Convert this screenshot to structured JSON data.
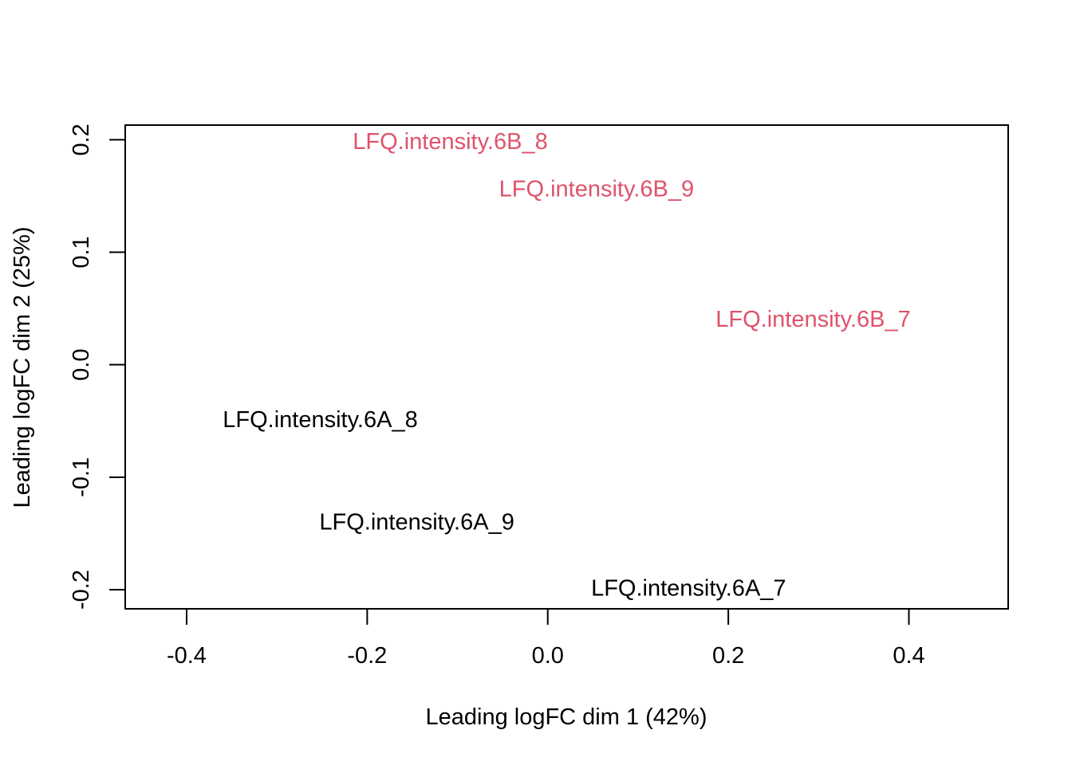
{
  "chart_data": {
    "type": "scatter",
    "title": "",
    "xlabel": "Leading logFC dim 1 (42%)",
    "ylabel": "Leading logFC dim 2 (25%)",
    "xlim": [
      -0.468,
      0.51
    ],
    "ylim": [
      -0.217,
      0.213
    ],
    "xticks": [
      -0.4,
      -0.2,
      0.0,
      0.2,
      0.4
    ],
    "xtick_labels": [
      "-0.4",
      "-0.2",
      "0.0",
      "0.2",
      "0.4"
    ],
    "yticks": [
      -0.2,
      -0.1,
      0.0,
      0.1,
      0.2
    ],
    "ytick_labels": [
      "-0.2",
      "-0.1",
      "0.0",
      "0.1",
      "0.2"
    ],
    "grid": false,
    "points": [
      {
        "label": "LFQ.intensity.6A_7",
        "x": 0.156,
        "y": -0.199,
        "color": "#000000"
      },
      {
        "label": "LFQ.intensity.6A_8",
        "x": -0.252,
        "y": -0.049,
        "color": "#000000"
      },
      {
        "label": "LFQ.intensity.6A_9",
        "x": -0.145,
        "y": -0.14,
        "color": "#000000"
      },
      {
        "label": "LFQ.intensity.6B_7",
        "x": 0.294,
        "y": 0.04,
        "color": "#DF536B"
      },
      {
        "label": "LFQ.intensity.6B_8",
        "x": -0.108,
        "y": 0.198,
        "color": "#DF536B"
      },
      {
        "label": "LFQ.intensity.6B_9",
        "x": 0.054,
        "y": 0.156,
        "color": "#DF536B"
      }
    ]
  }
}
